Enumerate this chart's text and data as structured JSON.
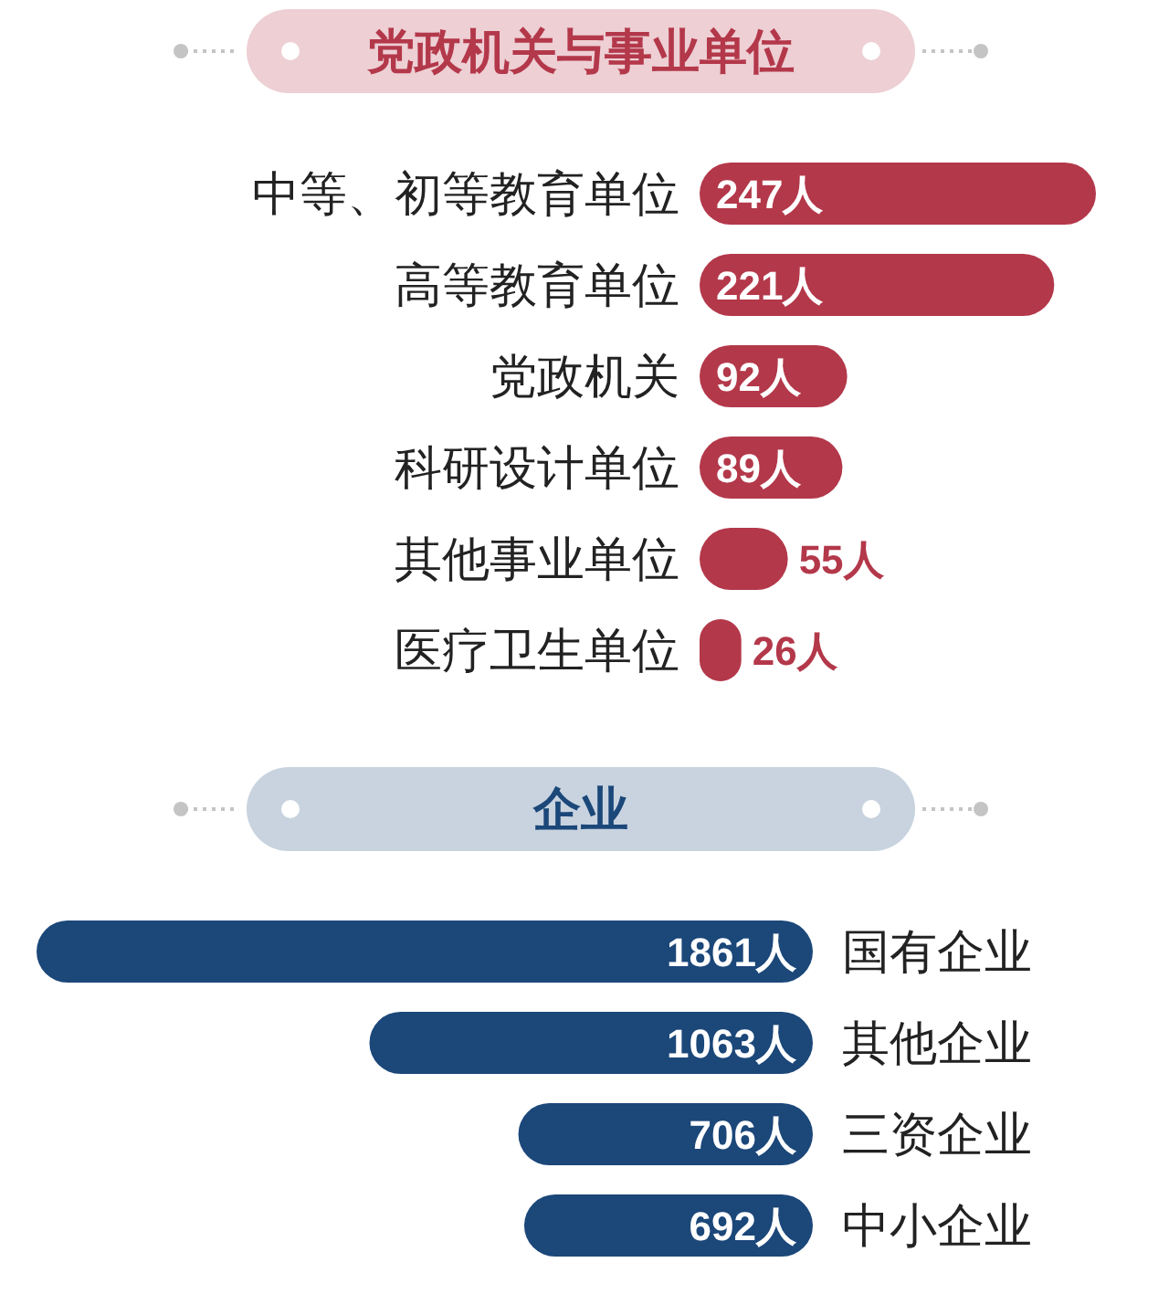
{
  "chart_data": [
    {
      "type": "bar",
      "orientation": "horizontal",
      "title": "党政机关与事业单位",
      "categories": [
        "中等、初等教育单位",
        "高等教育单位",
        "党政机关",
        "科研设计单位",
        "其他事业单位",
        "医疗卫生单位"
      ],
      "values": [
        247,
        221,
        92,
        89,
        55,
        26
      ],
      "value_labels": [
        "247人",
        "221人",
        "92人",
        "89人",
        "55人",
        "26人"
      ],
      "color": "#b3384a",
      "xlim": [
        0,
        247
      ]
    },
    {
      "type": "bar",
      "orientation": "horizontal",
      "title": "企业",
      "categories": [
        "国有企业",
        "其他企业",
        "三资企业",
        "中小企业"
      ],
      "values": [
        1861,
        1063,
        706,
        692
      ],
      "value_labels": [
        "1861人",
        "1063人",
        "706人",
        "692人"
      ],
      "color": "#1b4779",
      "xlim": [
        1861,
        0
      ]
    }
  ]
}
